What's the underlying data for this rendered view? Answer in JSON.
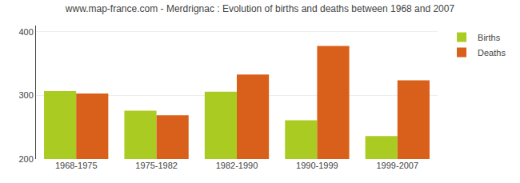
{
  "chart_data": {
    "type": "bar",
    "title": "www.map-france.com - Merdrignac : Evolution of births and deaths between 1968 and 2007",
    "categories": [
      "1968-1975",
      "1975-1982",
      "1982-1990",
      "1990-1999",
      "1999-2007"
    ],
    "series": [
      {
        "name": "Births",
        "color": "#aacc22",
        "values": [
          307,
          276,
          306,
          261,
          236
        ]
      },
      {
        "name": "Deaths",
        "color": "#d9601a",
        "values": [
          303,
          269,
          333,
          378,
          324
        ]
      }
    ],
    "ylim": [
      200,
      410
    ],
    "yticks": [
      200,
      300,
      400
    ],
    "grid": true,
    "legend": "upper right"
  }
}
